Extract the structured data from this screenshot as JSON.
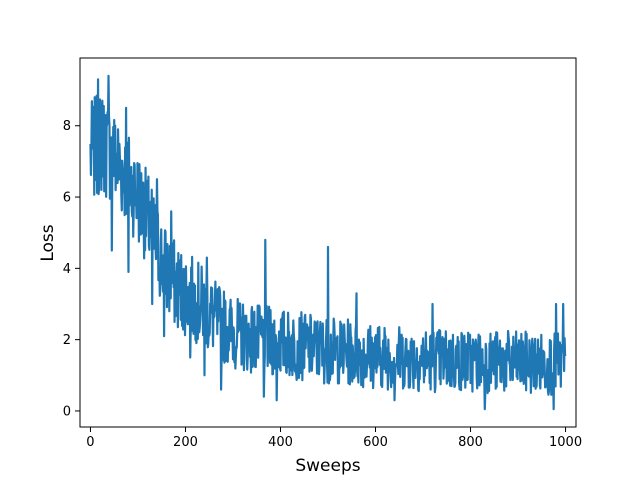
{
  "chart_data": {
    "type": "line",
    "xlabel": "Sweeps",
    "ylabel": "Loss",
    "xlim": [
      -22,
      1022
    ],
    "ylim": [
      -0.45,
      9.9
    ],
    "xticks": [
      0,
      200,
      400,
      600,
      800,
      1000
    ],
    "yticks": [
      0,
      2,
      4,
      6,
      8
    ],
    "grid": false,
    "line_color": "#1f77b4",
    "series": [
      {
        "noise_seed": 7,
        "anchors_x": [
          0,
          20,
          40,
          60,
          80,
          100,
          120,
          140,
          160,
          180,
          200,
          230,
          260,
          300,
          350,
          400,
          450,
          500,
          600,
          700,
          800,
          900,
          1000
        ],
        "anchors_y": [
          7.2,
          7.5,
          7.3,
          6.9,
          6.5,
          6.0,
          5.4,
          4.6,
          3.9,
          3.5,
          3.3,
          3.0,
          2.6,
          2.2,
          2.0,
          1.9,
          1.8,
          1.7,
          1.55,
          1.45,
          1.4,
          1.35,
          1.3
        ],
        "noise_amp_x": [
          0,
          100,
          200,
          300,
          500,
          1000
        ],
        "noise_amp_y": [
          1.1,
          1.0,
          0.9,
          0.75,
          0.7,
          0.65
        ],
        "spikes": [
          {
            "x": 10,
            "y": 7.8
          },
          {
            "x": 16,
            "y": 9.3
          },
          {
            "x": 25,
            "y": 8.7
          },
          {
            "x": 32,
            "y": 8.3
          },
          {
            "x": 38,
            "y": 9.4
          },
          {
            "x": 45,
            "y": 4.5
          },
          {
            "x": 52,
            "y": 8.0
          },
          {
            "x": 75,
            "y": 8.5
          },
          {
            "x": 80,
            "y": 3.9
          },
          {
            "x": 130,
            "y": 3.0
          },
          {
            "x": 140,
            "y": 6.5
          },
          {
            "x": 155,
            "y": 2.1
          },
          {
            "x": 170,
            "y": 5.6
          },
          {
            "x": 210,
            "y": 1.5
          },
          {
            "x": 240,
            "y": 1.0
          },
          {
            "x": 245,
            "y": 4.3
          },
          {
            "x": 275,
            "y": 0.6
          },
          {
            "x": 365,
            "y": 0.4
          },
          {
            "x": 368,
            "y": 4.8
          },
          {
            "x": 392,
            "y": 0.3
          },
          {
            "x": 500,
            "y": 4.6
          },
          {
            "x": 560,
            "y": 3.3
          },
          {
            "x": 640,
            "y": 0.3
          },
          {
            "x": 720,
            "y": 3.0
          },
          {
            "x": 830,
            "y": 0.05
          },
          {
            "x": 975,
            "y": 0.05
          },
          {
            "x": 980,
            "y": 3.0
          },
          {
            "x": 995,
            "y": 3.0
          }
        ]
      }
    ]
  }
}
